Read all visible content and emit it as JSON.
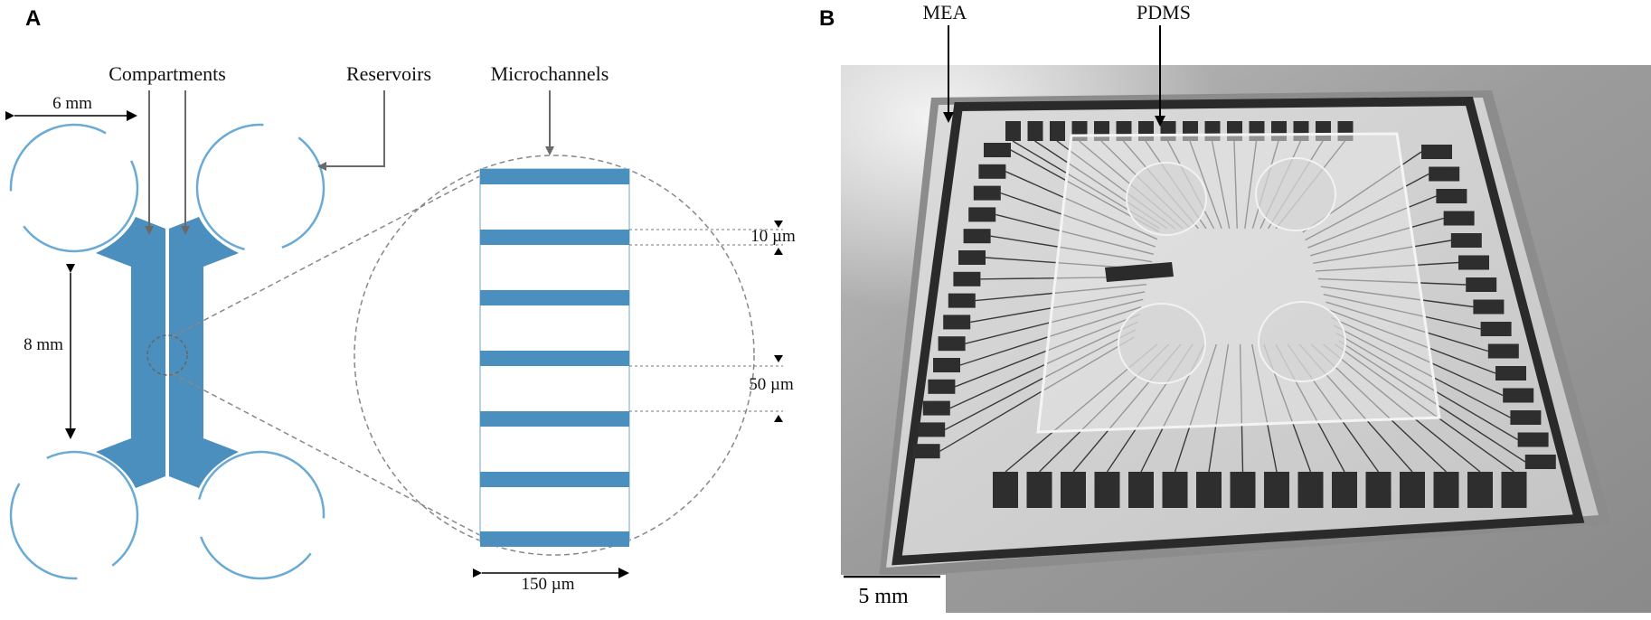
{
  "panel_a": {
    "label": "A",
    "compartments_label": "Compartments",
    "reservoirs_label": "Reservoirs",
    "microchannels_label": "Microchannels",
    "width_dim": "6 mm",
    "height_dim": "8 mm",
    "channel_height_dim": "10 µm",
    "channel_spacing_dim": "50 µm",
    "channel_length_dim": "150 µm"
  },
  "panel_b": {
    "label": "B",
    "mea_label": "MEA",
    "pdms_label": "PDMS",
    "scale_bar_label": "5 mm"
  },
  "colors": {
    "channel_blue": "#4a8fbd",
    "reservoir_blue": "#6aaad6",
    "guide_gray": "#888888"
  }
}
